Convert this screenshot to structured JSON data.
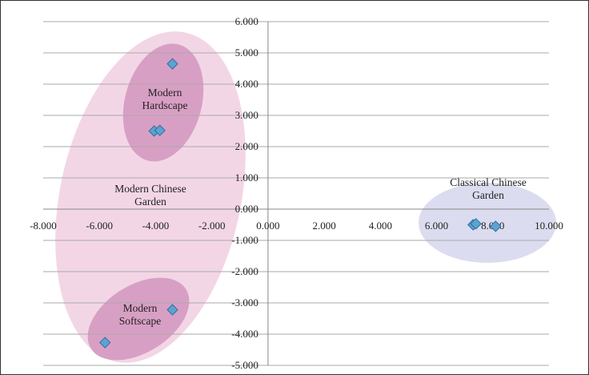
{
  "chart_data": {
    "type": "scatter",
    "title": "",
    "xlabel": "",
    "ylabel": "",
    "xlim": [
      -8,
      10
    ],
    "ylim": [
      -5,
      6
    ],
    "x_ticks": [
      "-8.000",
      "-6.000",
      "-4.000",
      "-2.000",
      "0.000",
      "2.000",
      "4.000",
      "6.000",
      "8.000",
      "10.000"
    ],
    "y_ticks": [
      "6.000",
      "5.000",
      "4.000",
      "3.000",
      "2.000",
      "1.000",
      "0.000",
      "-1.000",
      "-2.000",
      "-3.000",
      "-4.000",
      "-5.000"
    ],
    "grid": "horizontal",
    "legend": "none",
    "marker_color": "#5ba3d0",
    "series": [
      {
        "values": [
          {
            "x": -3.4,
            "y": 4.65
          },
          {
            "x": -4.05,
            "y": 2.5
          },
          {
            "x": -3.85,
            "y": 2.52
          },
          {
            "x": -3.4,
            "y": -3.22
          },
          {
            "x": -5.8,
            "y": -4.27
          },
          {
            "x": 7.3,
            "y": -0.5
          },
          {
            "x": 7.4,
            "y": -0.47
          },
          {
            "x": 8.1,
            "y": -0.55
          }
        ]
      }
    ],
    "annotations": [
      {
        "lines": [
          "Modern",
          "Hardscape"
        ]
      },
      {
        "lines": [
          "Modern Chinese",
          "Garden"
        ]
      },
      {
        "lines": [
          "Modern",
          "Softscape"
        ]
      },
      {
        "lines": [
          "Classical Chinese",
          "Garden"
        ]
      }
    ],
    "colors": {
      "large_ellipse": "#f3d6e6",
      "inner_ellipse": "#d89fc4",
      "classical_ellipse": "#dcdcf0",
      "grid": "#aaaaaa"
    }
  }
}
